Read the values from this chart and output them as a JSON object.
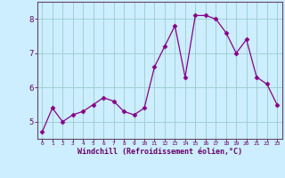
{
  "x": [
    0,
    1,
    2,
    3,
    4,
    5,
    6,
    7,
    8,
    9,
    10,
    11,
    12,
    13,
    14,
    15,
    16,
    17,
    18,
    19,
    20,
    21,
    22,
    23
  ],
  "y": [
    4.7,
    5.4,
    5.0,
    5.2,
    5.3,
    5.5,
    5.7,
    5.6,
    5.3,
    5.2,
    5.4,
    6.6,
    7.2,
    7.8,
    6.3,
    8.1,
    8.1,
    8.0,
    7.6,
    7.0,
    7.4,
    6.3,
    6.1,
    5.5
  ],
  "line_color": "#880088",
  "marker": "D",
  "marker_size": 2.5,
  "bg_color": "#cceeff",
  "grid_color": "#99cccc",
  "axis_color": "#660066",
  "spine_color": "#664466",
  "xlabel": "Windchill (Refroidissement éolien,°C)",
  "ylim": [
    4.5,
    8.5
  ],
  "xlim": [
    -0.5,
    23.5
  ],
  "yticks": [
    5,
    6,
    7,
    8
  ],
  "xticks": [
    0,
    1,
    2,
    3,
    4,
    5,
    6,
    7,
    8,
    9,
    10,
    11,
    12,
    13,
    14,
    15,
    16,
    17,
    18,
    19,
    20,
    21,
    22,
    23
  ],
  "ytick_labels": [
    "5",
    "6",
    "7",
    "8"
  ],
  "xtick_labels": [
    "0",
    "1",
    "2",
    "3",
    "4",
    "5",
    "6",
    "7",
    "8",
    "9",
    "10",
    "11",
    "12",
    "13",
    "14",
    "15",
    "16",
    "17",
    "18",
    "19",
    "20",
    "21",
    "22",
    "23"
  ]
}
